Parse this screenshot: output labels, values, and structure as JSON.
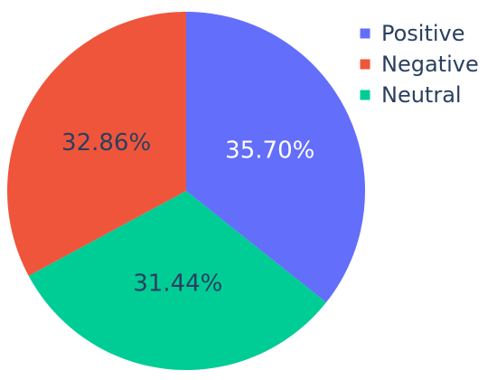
{
  "chart_data": {
    "type": "pie",
    "slices": [
      {
        "label": "Positive",
        "value": 35.7,
        "text": "35.70%",
        "color": "#636efa",
        "text_color": "#ffffff"
      },
      {
        "label": "Neutral",
        "value": 31.44,
        "text": "31.44%",
        "color": "#00cc96",
        "text_color": "#2a3f5f"
      },
      {
        "label": "Negative",
        "value": 32.86,
        "text": "32.86%",
        "color": "#ef553b",
        "text_color": "#2a3f5f"
      }
    ],
    "legend": {
      "position": "top-right",
      "entries": [
        {
          "name": "Positive",
          "color": "#636efa"
        },
        {
          "name": "Negative",
          "color": "#ef553b"
        },
        {
          "name": "Neutral",
          "color": "#00cc96"
        }
      ]
    },
    "start_angle": "top",
    "direction": "clockwise"
  }
}
